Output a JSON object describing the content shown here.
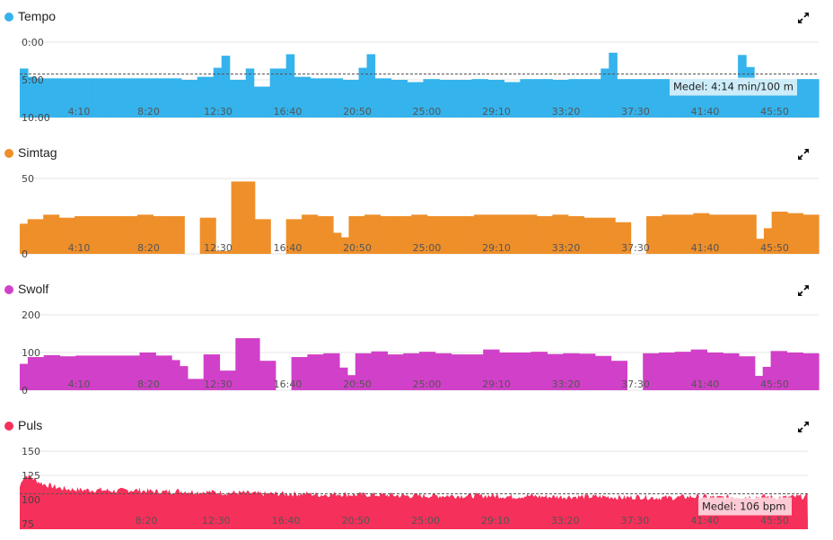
{
  "chart_data": [
    {
      "type": "bar",
      "title": "Tempo",
      "color": "#35b3ec",
      "yticks": [
        "0:00",
        "5:00",
        "10:00"
      ],
      "ylim": [
        0,
        10
      ],
      "inverted_y": true,
      "xticks": [
        "4:10",
        "8:20",
        "12:30",
        "16:40",
        "20:50",
        "25:00",
        "29:10",
        "33:20",
        "37:30",
        "41:40",
        "45:50"
      ],
      "xlim": [
        0,
        49.6
      ],
      "average_label": "Medel: 4:14 min/100 m",
      "average_value": 4.23,
      "values": [
        3.5,
        4.6,
        4.8,
        4.8,
        4.8,
        4.8,
        4.8,
        4.8,
        4.8,
        4.8,
        4.8,
        4.8,
        4.8,
        4.8,
        4.8,
        4.8,
        4.8,
        4.8,
        4.8,
        4.8,
        5.0,
        5.0,
        4.6,
        4.6,
        3.4,
        1.8,
        5.0,
        5.0,
        3.5,
        5.9,
        5.9,
        3.5,
        3.5,
        1.6,
        4.6,
        4.6,
        4.8,
        4.8,
        4.8,
        4.8,
        5.0,
        5.0,
        3.4,
        1.6,
        4.8,
        4.8,
        5.0,
        5.0,
        5.3,
        5.3,
        4.9,
        4.9,
        5.0,
        5.0,
        5.0,
        5.0,
        4.9,
        4.9,
        5.0,
        5.0,
        5.3,
        5.3,
        4.9,
        4.9,
        4.9,
        4.9,
        5.0,
        5.0,
        4.9,
        4.9,
        4.9,
        4.9,
        3.5,
        1.4,
        4.9,
        4.9,
        4.9,
        4.9,
        4.9,
        4.9,
        4.9,
        4.9,
        4.9,
        4.9,
        4.9,
        4.9,
        4.9,
        4.9,
        4.9,
        1.7,
        3.3,
        4.9,
        4.9,
        4.9,
        4.9,
        4.9,
        4.9,
        4.9,
        4.9
      ]
    },
    {
      "type": "bar",
      "title": "Simtag",
      "color": "#ee8f2a",
      "yticks": [
        "50",
        "0"
      ],
      "ylim": [
        0,
        50
      ],
      "xticks": [
        "4:10",
        "8:20",
        "12:30",
        "16:40",
        "20:50",
        "25:00",
        "29:10",
        "33:20",
        "37:30",
        "41:40",
        "45:50"
      ],
      "xlim": [
        0,
        49.6
      ],
      "values": [
        20,
        23,
        23,
        26,
        26,
        24,
        24,
        25,
        25,
        25,
        25,
        25,
        25,
        25,
        25,
        26,
        26,
        25,
        25,
        25,
        25,
        0,
        0,
        24,
        24,
        2,
        2,
        48,
        48,
        48,
        23,
        23,
        0,
        0,
        23,
        23,
        26,
        26,
        25,
        25,
        14,
        11,
        25,
        25,
        26,
        26,
        25,
        25,
        25,
        25,
        26,
        26,
        25,
        25,
        25,
        25,
        25,
        25,
        26,
        26,
        26,
        26,
        26,
        26,
        26,
        26,
        25,
        25,
        26,
        26,
        25,
        25,
        24,
        24,
        24,
        24,
        21,
        21,
        0,
        0,
        25,
        25,
        26,
        26,
        26,
        26,
        27,
        27,
        26,
        26,
        26,
        26,
        26,
        26,
        10,
        17,
        28,
        28,
        27,
        27,
        26,
        26
      ]
    },
    {
      "type": "bar",
      "title": "Swolf",
      "color": "#d140c8",
      "yticks": [
        "200",
        "100",
        "0"
      ],
      "ylim": [
        0,
        200
      ],
      "xticks": [
        "4:10",
        "8:20",
        "12:30",
        "16:40",
        "20:50",
        "25:00",
        "29:10",
        "33:20",
        "37:30",
        "41:40",
        "45:50"
      ],
      "xlim": [
        0,
        49.6
      ],
      "values": [
        70,
        88,
        88,
        93,
        93,
        90,
        90,
        92,
        92,
        92,
        92,
        92,
        92,
        92,
        92,
        100,
        100,
        92,
        92,
        80,
        64,
        30,
        30,
        95,
        95,
        52,
        52,
        138,
        138,
        138,
        78,
        78,
        0,
        0,
        88,
        88,
        95,
        95,
        98,
        98,
        60,
        40,
        98,
        98,
        103,
        103,
        95,
        95,
        98,
        98,
        102,
        102,
        98,
        98,
        95,
        95,
        95,
        95,
        108,
        108,
        100,
        100,
        100,
        100,
        102,
        102,
        96,
        96,
        98,
        98,
        97,
        97,
        91,
        91,
        78,
        78,
        0,
        0,
        98,
        98,
        100,
        100,
        102,
        102,
        108,
        108,
        100,
        100,
        98,
        98,
        90,
        90,
        38,
        62,
        104,
        104,
        100,
        100,
        98,
        98
      ]
    },
    {
      "type": "area",
      "title": "Puls",
      "color": "#f5305a",
      "yticks": [
        "150",
        "125",
        "100",
        "75"
      ],
      "ylim": [
        75,
        150
      ],
      "xticks": [
        "8:20",
        "12:30",
        "16:40",
        "20:50",
        "25:00",
        "29:10",
        "33:20",
        "37:30",
        "41:40",
        "45:50"
      ],
      "xlim": [
        0,
        49.6
      ],
      "average_label": "Medel: 106 bpm",
      "average_value": 106,
      "x": [
        0,
        0.2,
        0.5,
        1,
        1.5,
        2,
        2.5,
        3,
        4,
        5,
        6,
        7,
        8,
        9,
        10,
        11,
        12,
        13,
        14,
        15,
        16,
        17,
        18,
        19,
        20,
        21,
        22,
        23,
        24,
        25,
        26,
        27,
        28,
        29,
        30,
        31,
        32,
        33,
        34,
        35,
        36,
        37,
        38,
        39,
        40,
        41,
        42,
        43,
        44,
        45,
        46,
        47,
        48,
        49,
        49.6
      ],
      "values": [
        113,
        123,
        125,
        120,
        116,
        114,
        112,
        111,
        110,
        110,
        109,
        110,
        109,
        108,
        109,
        108,
        108,
        107,
        107,
        106,
        106,
        106,
        106,
        105,
        106,
        105,
        105,
        105,
        104,
        104,
        104,
        104,
        104,
        104,
        104,
        103,
        104,
        103,
        103,
        103,
        103,
        103,
        102,
        103,
        102,
        102,
        103,
        103,
        102,
        103,
        103,
        103,
        102,
        103,
        103
      ]
    }
  ]
}
